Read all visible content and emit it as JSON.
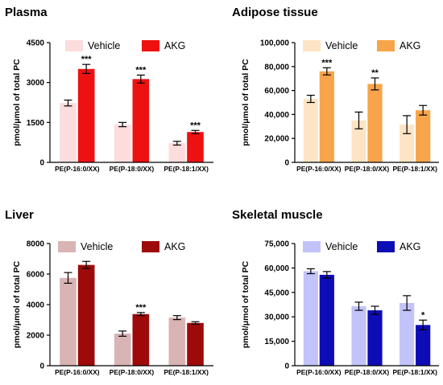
{
  "chart_data": [
    {
      "type": "bar",
      "title": "Plasma",
      "ylabel": "pmol/μmol of total PC",
      "xlabel": "",
      "categories": [
        "PE(P-16:0/XX)",
        "PE(P-18:0/XX)",
        "PE(P-18:1/XX)"
      ],
      "yticks": [
        "0",
        "1500",
        "3000",
        "4500"
      ],
      "ylim": [
        0,
        4500
      ],
      "legend_position": "top",
      "series": [
        {
          "name": "Vehicle",
          "color": "#fcdcdc",
          "values": [
            2230,
            1420,
            720
          ],
          "errors": [
            110,
            80,
            70
          ],
          "significance": [
            "",
            "",
            ""
          ]
        },
        {
          "name": "AKG",
          "color": "#ee1111",
          "values": [
            3510,
            3130,
            1140
          ],
          "errors": [
            170,
            150,
            60
          ],
          "significance": [
            "***",
            "***",
            "***"
          ]
        }
      ]
    },
    {
      "type": "bar",
      "title": "Adipose tissue",
      "ylabel": "pmol/μmol of total PC",
      "xlabel": "",
      "categories": [
        "PE(P-16:0/XX)",
        "PE(P-18:0/XX)",
        "PE(P-18:1/XX)"
      ],
      "yticks": [
        "0",
        "20,000",
        "40,000",
        "60,000",
        "80,000",
        "100,000"
      ],
      "ylim": [
        0,
        100000
      ],
      "legend_position": "top",
      "series": [
        {
          "name": "Vehicle",
          "color": "#fde4c4",
          "values": [
            53000,
            35000,
            31500
          ],
          "errors": [
            3000,
            7000,
            7500
          ],
          "significance": [
            "",
            "",
            ""
          ]
        },
        {
          "name": "AKG",
          "color": "#f7a44a",
          "values": [
            76000,
            65500,
            43500
          ],
          "errors": [
            3000,
            5000,
            4000
          ],
          "significance": [
            "***",
            "**",
            ""
          ]
        }
      ]
    },
    {
      "type": "bar",
      "title": "Liver",
      "ylabel": "pmol/μmol of total PC",
      "xlabel": "",
      "categories": [
        "PE(P-16:0/XX)",
        "PE(P-18:0/XX)",
        "PE(P-18:1/XX)"
      ],
      "yticks": [
        "0",
        "2000",
        "4000",
        "6000",
        "8000"
      ],
      "ylim": [
        0,
        8000
      ],
      "legend_position": "top",
      "series": [
        {
          "name": "Vehicle",
          "color": "#d9b4b4",
          "values": [
            5750,
            2100,
            3150
          ],
          "errors": [
            350,
            170,
            130
          ],
          "significance": [
            "",
            "",
            ""
          ]
        },
        {
          "name": "AKG",
          "color": "#9e0a0a",
          "values": [
            6600,
            3380,
            2800
          ],
          "errors": [
            230,
            100,
            80
          ],
          "significance": [
            "",
            "***",
            ""
          ]
        }
      ]
    },
    {
      "type": "bar",
      "title": "Skeletal muscle",
      "ylabel": "pmol/μmol of total PC",
      "xlabel": "",
      "categories": [
        "PE(P-16:0/XX)",
        "PE(P-18:0/XX)",
        "PE(P-18:1/XX)"
      ],
      "yticks": [
        "0",
        "15,000",
        "30,000",
        "45,000",
        "60,000",
        "75,000"
      ],
      "ylim": [
        0,
        75000
      ],
      "legend_position": "top",
      "series": [
        {
          "name": "Vehicle",
          "color": "#c2c3f9",
          "values": [
            58000,
            36500,
            38500
          ],
          "errors": [
            1500,
            2500,
            4500
          ],
          "significance": [
            "",
            "",
            ""
          ]
        },
        {
          "name": "AKG",
          "color": "#0d0db5",
          "values": [
            55800,
            34000,
            25000
          ],
          "errors": [
            2000,
            2500,
            3000
          ],
          "significance": [
            "",
            "",
            "*"
          ]
        }
      ]
    }
  ]
}
